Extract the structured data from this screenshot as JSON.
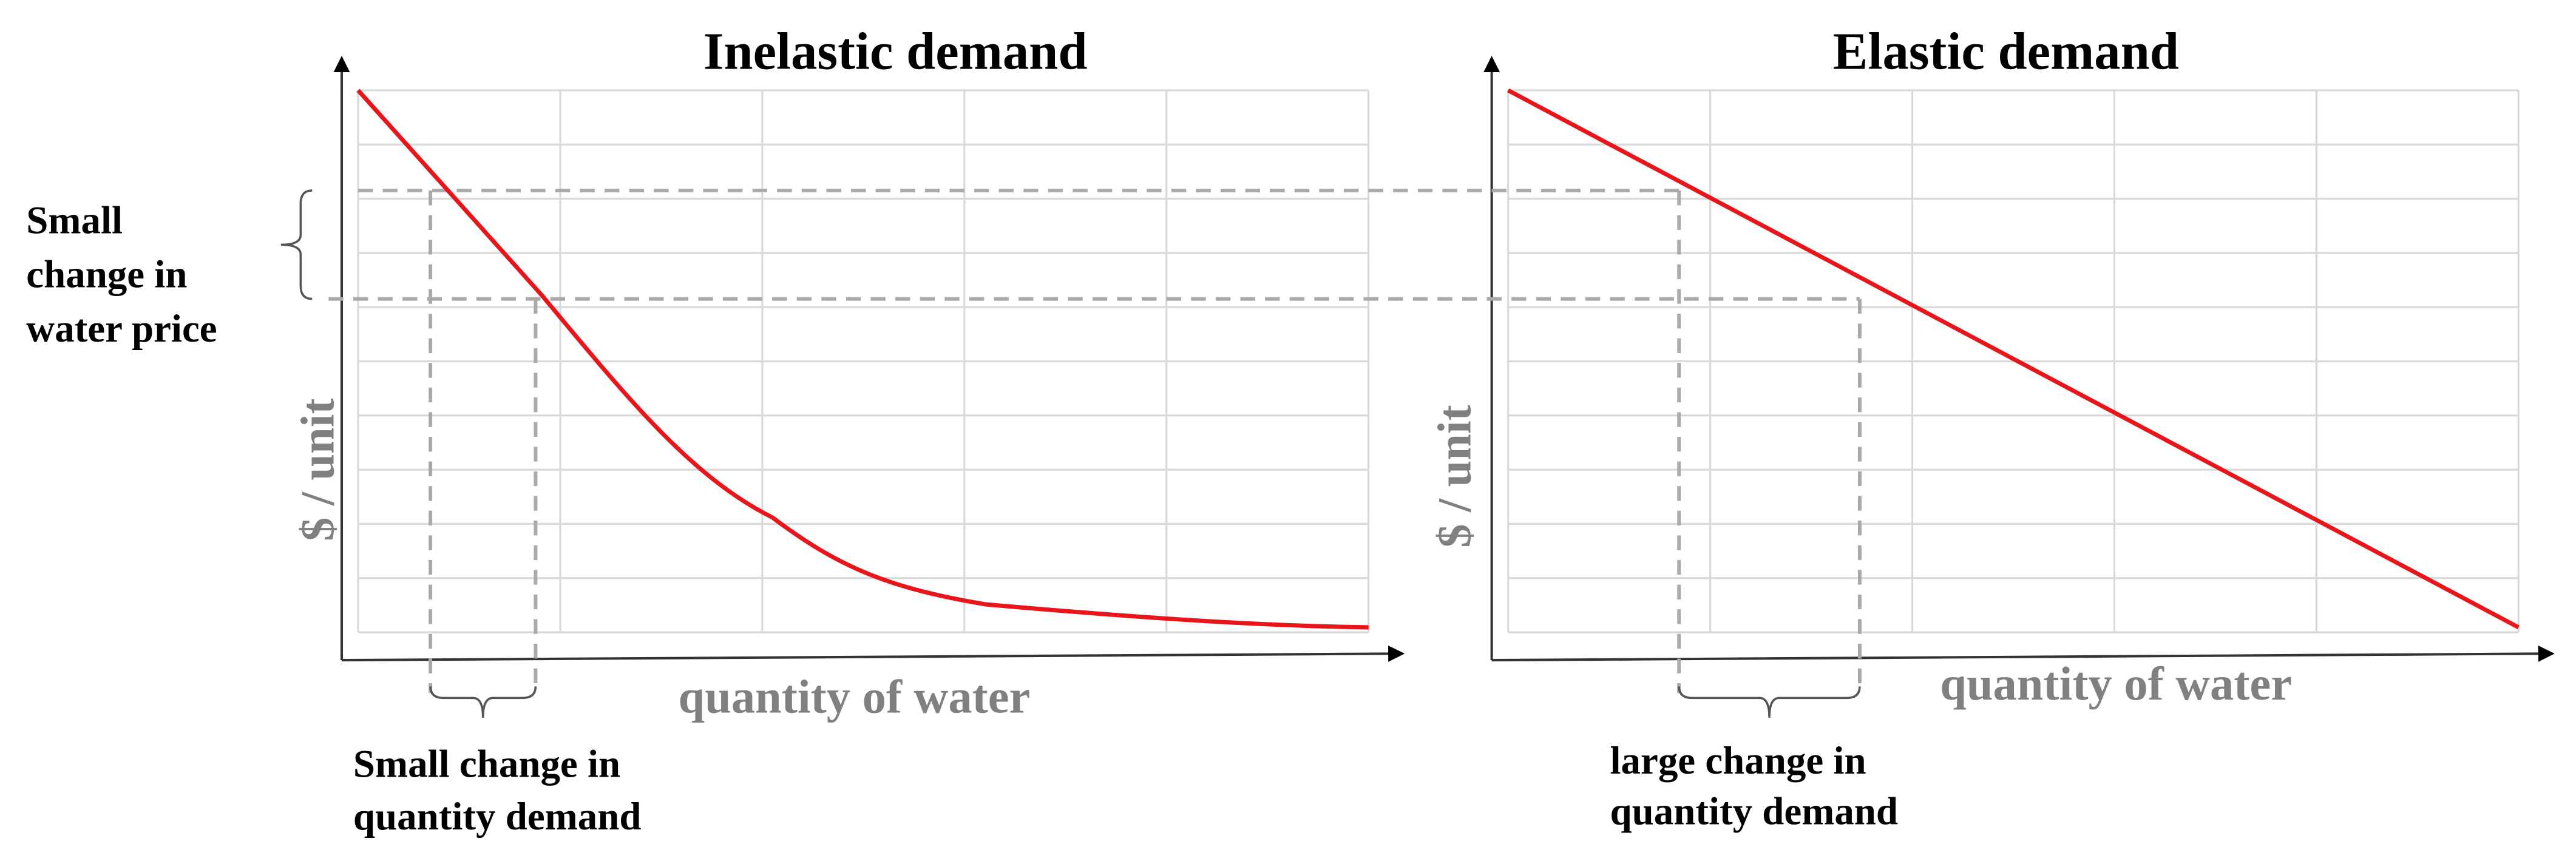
{
  "panels": [
    {
      "title": "Inelastic demand",
      "y_label": "$ / unit",
      "x_label": "quantity of water",
      "annotation": [
        "Small change in",
        "quantity demand"
      ]
    },
    {
      "title": "Elastic demand",
      "y_label": "$ / unit",
      "x_label": "quantity of water",
      "annotation": [
        "large change in",
        "quantity demand"
      ]
    }
  ],
  "side_annotation": [
    "Small",
    "change in",
    "water price"
  ]
}
